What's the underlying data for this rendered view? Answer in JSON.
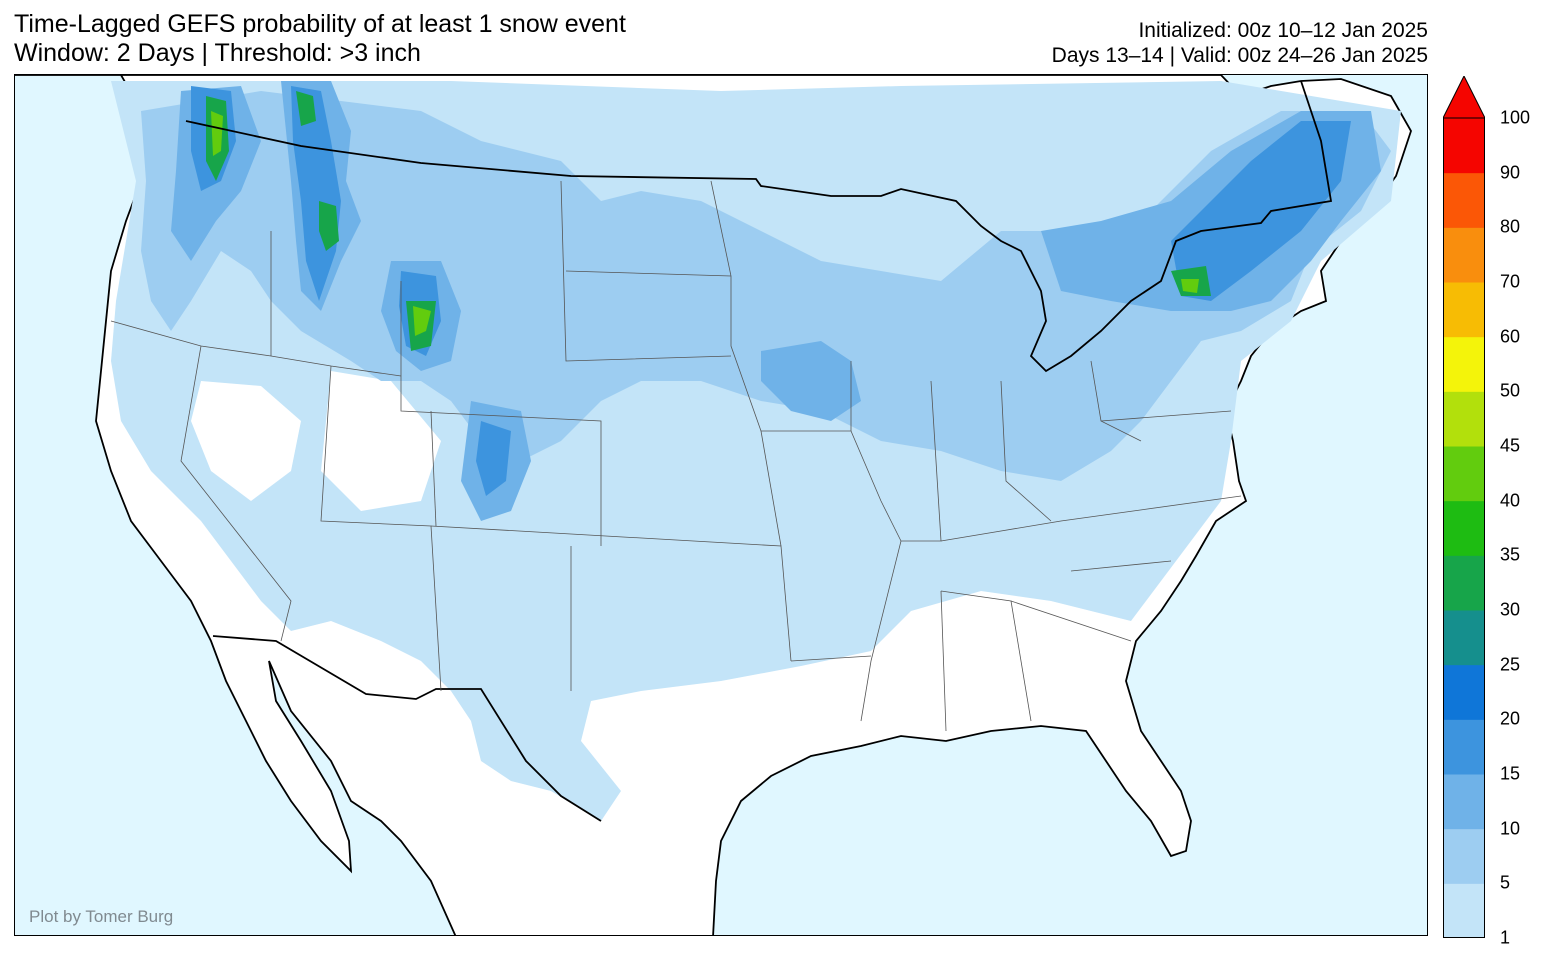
{
  "title": {
    "line1": "Time-Lagged GEFS probability of at least 1 snow event",
    "line2": "Window: 2 Days | Threshold: >3 inch"
  },
  "info": {
    "line1": "Initialized: 00z 10–12 Jan 2025",
    "line2": "Days 13–14 | Valid: 00z 24–26 Jan 2025"
  },
  "credit": "Plot by Tomer Burg",
  "colors": {
    "ocean": "#e0f7ff",
    "land": "#ffffff"
  },
  "colorbar": {
    "labels": [
      "1",
      "5",
      "10",
      "15",
      "20",
      "25",
      "30",
      "35",
      "40",
      "45",
      "50",
      "60",
      "70",
      "80",
      "90",
      "100"
    ],
    "colors": [
      "#c3e4f8",
      "#9dcdf1",
      "#6fb2e8",
      "#3d94de",
      "#0f76d8",
      "#158f8d",
      "#17a54a",
      "#1ebc12",
      "#62cc0e",
      "#b2e00c",
      "#f4f40a",
      "#f7bc04",
      "#f98e0d",
      "#fb5706",
      "#f50500"
    ],
    "extend": "max"
  }
}
